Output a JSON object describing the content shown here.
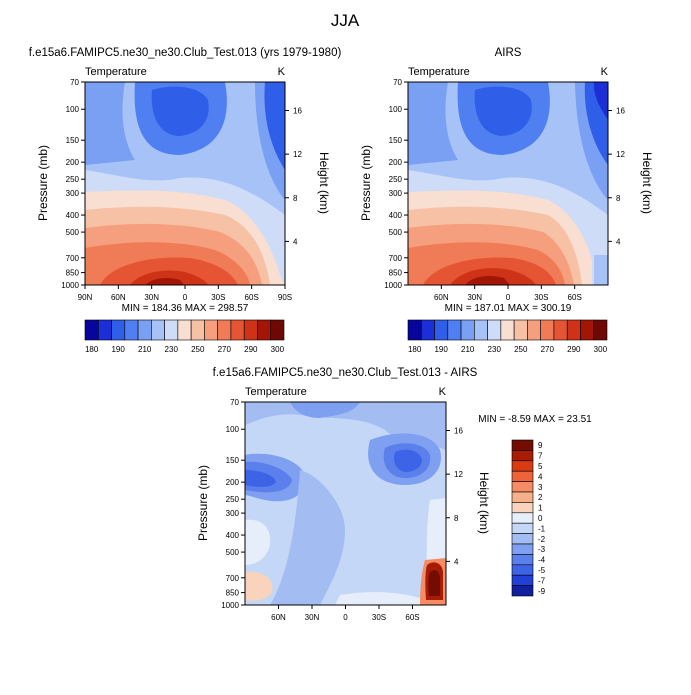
{
  "figure": {
    "title": "JJA"
  },
  "chart_data": [
    {
      "type": "heatmap",
      "title": "f.e15a6.FAMIPC5.ne30_ne30.Club_Test.013 (yrs 1979-1980)",
      "variable": "Temperature",
      "units": "K",
      "xlabel": "",
      "ylabel": "Pressure (mb)",
      "y2label": "Height (km)",
      "x_ticks": [
        "90N",
        "60N",
        "30N",
        "0",
        "30S",
        "60S",
        "90S"
      ],
      "y_ticks": [
        "70",
        "100",
        "150",
        "200",
        "250",
        "300",
        "400",
        "500",
        "700",
        "850",
        "1000"
      ],
      "y2_ticks": [
        "16",
        "12",
        "8",
        "4"
      ],
      "stats": "MIN = 184.36   MAX = 298.57",
      "min": 184.36,
      "max": 298.57,
      "colorbar_labels": [
        "180",
        "190",
        "210",
        "230",
        "250",
        "270",
        "290",
        "300"
      ]
    },
    {
      "type": "heatmap",
      "title": "AIRS",
      "variable": "Temperature",
      "units": "K",
      "xlabel": "",
      "ylabel": "Pressure (mb)",
      "y2label": "Height (km)",
      "x_ticks": [
        "60N",
        "30N",
        "0",
        "30S",
        "60S"
      ],
      "y_ticks": [
        "70",
        "100",
        "150",
        "200",
        "250",
        "300",
        "400",
        "500",
        "700",
        "850",
        "1000"
      ],
      "y2_ticks": [
        "16",
        "12",
        "8",
        "4"
      ],
      "stats": "MIN = 187.01   MAX = 300.19",
      "min": 187.01,
      "max": 300.19,
      "colorbar_labels": [
        "180",
        "190",
        "210",
        "230",
        "250",
        "270",
        "290",
        "300"
      ]
    },
    {
      "type": "heatmap",
      "title": "f.e15a6.FAMIPC5.ne30_ne30.Club_Test.013 - AIRS",
      "variable": "Temperature",
      "units": "K",
      "xlabel": "",
      "ylabel": "Pressure (mb)",
      "y2label": "Height (km)",
      "x_ticks": [
        "60N",
        "30N",
        "0",
        "30S",
        "60S"
      ],
      "y_ticks": [
        "70",
        "100",
        "150",
        "200",
        "250",
        "300",
        "400",
        "500",
        "700",
        "850",
        "1000"
      ],
      "y2_ticks": [
        "16",
        "12",
        "8",
        "4"
      ],
      "stats": "MIN =  -8.59   MAX =  23.51",
      "min": -8.59,
      "max": 23.51,
      "colorbar_labels": [
        "9",
        "7",
        "5",
        "4",
        "3",
        "2",
        "1",
        "0",
        "-1",
        "-2",
        "-3",
        "-4",
        "-5",
        "-7",
        "-9"
      ]
    }
  ],
  "colors": {
    "temp_scale": [
      "#08059c",
      "#1c2fd6",
      "#2f5ee8",
      "#4f7ff0",
      "#7aa0f4",
      "#a6c2f7",
      "#cfdcf7",
      "#f9ded2",
      "#f7c1a6",
      "#f59f7e",
      "#f07b57",
      "#e65533",
      "#cf3317",
      "#a31606",
      "#6e0804"
    ],
    "diff_scale": [
      "#730d02",
      "#a81b05",
      "#d93a12",
      "#ee6338",
      "#f58c63",
      "#f7b08c",
      "#fad3bd",
      "#e6eefb",
      "#c5d7f7",
      "#a3bdf3",
      "#7f9ff0",
      "#5b80ec",
      "#3d63e6",
      "#2141d6",
      "#0f1f9e"
    ]
  }
}
